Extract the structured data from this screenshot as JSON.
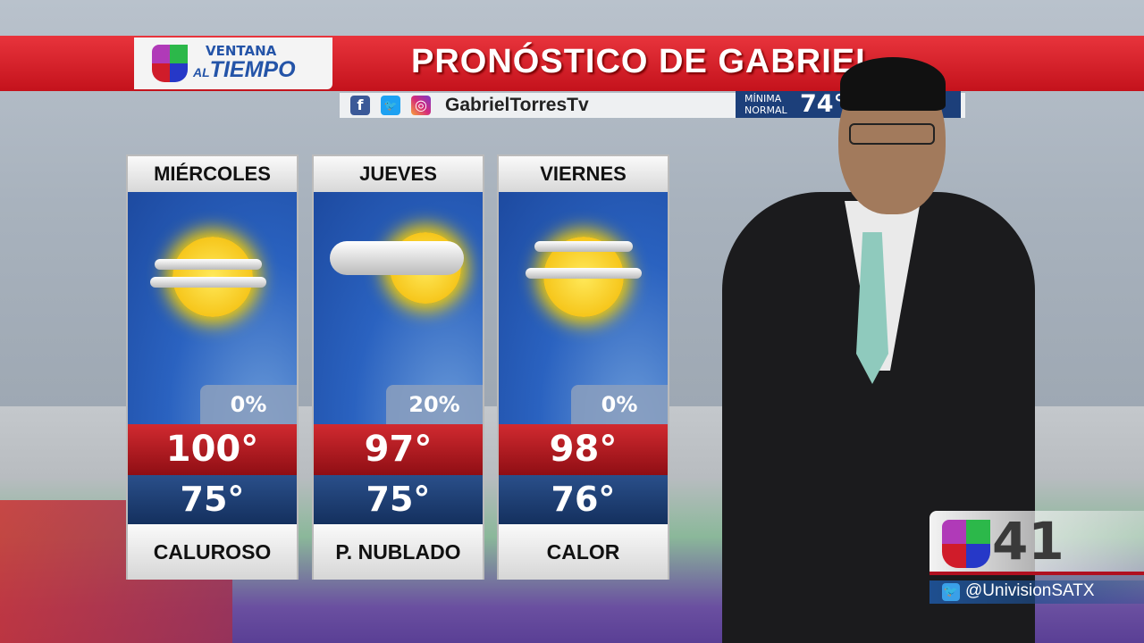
{
  "header": {
    "brand_line1": "VENTANA",
    "brand_line2_prefix": "AL",
    "brand_line2": "TIEMPO",
    "title": "PRONÓSTICO DE GABRIEL"
  },
  "social": {
    "icons": [
      "facebook-icon",
      "twitter-icon",
      "instagram-icon"
    ],
    "handle": "GabrielTorresTv"
  },
  "normal": {
    "label_line1": "MÍNIMA",
    "label_line2": "NORMAL",
    "min_value": "74°"
  },
  "forecast": [
    {
      "day": "MIÉRCOLES",
      "icon": "sun-with-clouds",
      "precip": "0%",
      "high": "100°",
      "low": "75°",
      "condition": "CALUROSO"
    },
    {
      "day": "JUEVES",
      "icon": "partly-cloudy",
      "precip": "20%",
      "high": "97°",
      "low": "75°",
      "condition": "P. NUBLADO"
    },
    {
      "day": "VIERNES",
      "icon": "sun-with-clouds",
      "precip": "0%",
      "high": "98°",
      "low": "76°",
      "condition": "CALOR"
    }
  ],
  "station": {
    "channel": "41",
    "twitter_handle": "@UnivisionSATX"
  },
  "colors": {
    "header_red": "#d61f28",
    "high_red": "#b81a20",
    "low_blue": "#1f3f75",
    "brand_blue": "#2454a8"
  }
}
